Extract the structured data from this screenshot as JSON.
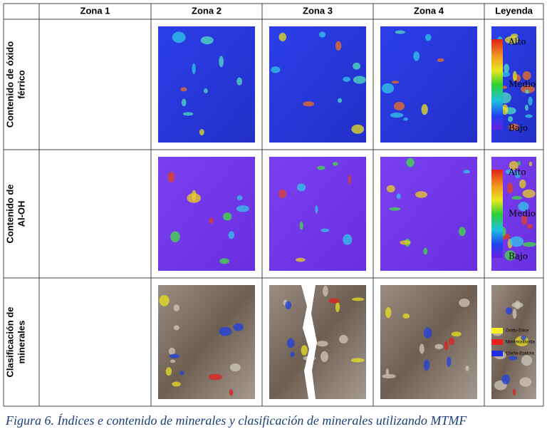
{
  "table": {
    "header": [
      "Zona 1",
      "Zona 2",
      "Zona 3",
      "Zona 4",
      "Leyenda"
    ],
    "rows": [
      {
        "label": [
          "Contenido de óxido",
          "férrico"
        ],
        "legend": [
          "Alto",
          "Medio",
          "Bajo"
        ]
      },
      {
        "label": [
          "Contenido de",
          "Al-OH"
        ],
        "legend": [
          "Alto",
          "Medio",
          "Bajo"
        ]
      },
      {
        "label": [
          "Clasificación de",
          "minerales"
        ],
        "legend": [
          "Óxido-Sílice",
          "Montmorillonita",
          "Clorita-Epidota"
        ]
      }
    ]
  },
  "caption": "Figura 6. Índices e contenido de minerales y clasificación de minerales utilizando MTMF"
}
